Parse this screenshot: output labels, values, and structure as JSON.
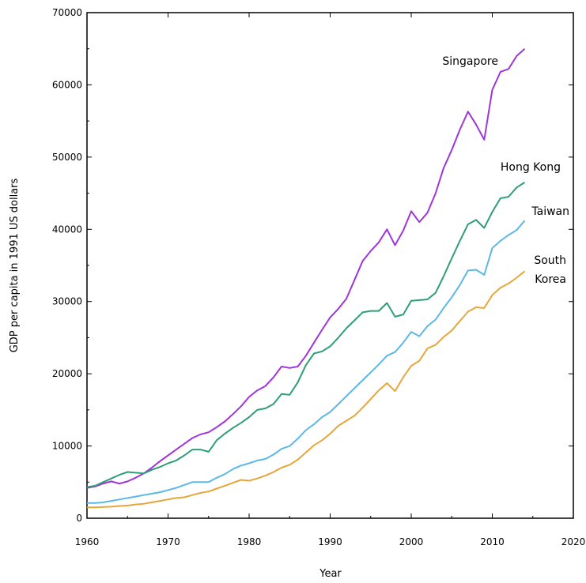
{
  "chart_data": {
    "type": "line",
    "title": "",
    "xlabel": "Year",
    "ylabel": "GDP per capita in 1991 US dollars",
    "xlim": [
      1960,
      2020
    ],
    "ylim": [
      0,
      70000
    ],
    "xticks": [
      "1960",
      "1970",
      "1980",
      "1990",
      "2000",
      "2010",
      "2020"
    ],
    "yticks": [
      "0",
      "10000",
      "20000",
      "30000",
      "40000",
      "50000",
      "60000",
      "70000"
    ],
    "grid": false,
    "legend": "inline labels at line ends",
    "series": [
      {
        "name": "Singapore",
        "label_lines": [
          "Singapore"
        ],
        "color": "#a035d8",
        "x": [
          1960,
          1961,
          1962,
          1963,
          1964,
          1965,
          1966,
          1967,
          1968,
          1969,
          1970,
          1971,
          1972,
          1973,
          1974,
          1975,
          1976,
          1977,
          1978,
          1979,
          1980,
          1981,
          1982,
          1983,
          1984,
          1985,
          1986,
          1987,
          1988,
          1989,
          1990,
          1991,
          1992,
          1993,
          1994,
          1995,
          1996,
          1997,
          1998,
          1999,
          2000,
          2001,
          2002,
          2003,
          2004,
          2005,
          2006,
          2007,
          2008,
          2009,
          2010,
          2011,
          2012,
          2013,
          2014
        ],
        "y": [
          4200,
          4400,
          4800,
          5100,
          4800,
          5100,
          5600,
          6200,
          7000,
          7900,
          8700,
          9500,
          10300,
          11100,
          11600,
          11900,
          12600,
          13400,
          14400,
          15500,
          16800,
          17700,
          18300,
          19500,
          21000,
          20800,
          21000,
          22500,
          24300,
          26100,
          27800,
          29000,
          30400,
          33000,
          35600,
          37000,
          38200,
          40000,
          37800,
          39800,
          42500,
          41000,
          42300,
          45000,
          48500,
          51000,
          53800,
          56300,
          54500,
          52400,
          59300,
          61800,
          62200,
          64000,
          65000
        ]
      },
      {
        "name": "Hong Kong",
        "label_lines": [
          "Hong Kong"
        ],
        "color": "#2e9e76",
        "x": [
          1960,
          1961,
          1962,
          1963,
          1964,
          1965,
          1966,
          1967,
          1968,
          1969,
          1970,
          1971,
          1972,
          1973,
          1974,
          1975,
          1976,
          1977,
          1978,
          1979,
          1980,
          1981,
          1982,
          1983,
          1984,
          1985,
          1986,
          1987,
          1988,
          1989,
          1990,
          1991,
          1992,
          1993,
          1994,
          1995,
          1996,
          1997,
          1998,
          1999,
          2000,
          2001,
          2002,
          2003,
          2004,
          2005,
          2006,
          2007,
          2008,
          2009,
          2010,
          2011,
          2012,
          2013,
          2014
        ],
        "y": [
          4300,
          4500,
          5000,
          5500,
          6000,
          6400,
          6300,
          6200,
          6700,
          7100,
          7600,
          8000,
          8700,
          9500,
          9500,
          9200,
          10800,
          11700,
          12500,
          13200,
          14000,
          15000,
          15200,
          15800,
          17200,
          17100,
          18800,
          21200,
          22800,
          23100,
          23800,
          25000,
          26300,
          27400,
          28500,
          28700,
          28700,
          29800,
          27900,
          28200,
          30100,
          30200,
          30300,
          31200,
          33500,
          36000,
          38400,
          40700,
          41300,
          40200,
          42400,
          44300,
          44500,
          45800,
          46500
        ]
      },
      {
        "name": "Taiwan",
        "label_lines": [
          "Taiwan"
        ],
        "color": "#5cb8e6",
        "x": [
          1960,
          1961,
          1962,
          1963,
          1964,
          1965,
          1966,
          1967,
          1968,
          1969,
          1970,
          1971,
          1972,
          1973,
          1974,
          1975,
          1976,
          1977,
          1978,
          1979,
          1980,
          1981,
          1982,
          1983,
          1984,
          1985,
          1986,
          1987,
          1988,
          1989,
          1990,
          1991,
          1992,
          1993,
          1994,
          1995,
          1996,
          1997,
          1998,
          1999,
          2000,
          2001,
          2002,
          2003,
          2004,
          2005,
          2006,
          2007,
          2008,
          2009,
          2010,
          2011,
          2012,
          2013,
          2014
        ],
        "y": [
          2100,
          2100,
          2200,
          2400,
          2600,
          2800,
          3000,
          3200,
          3400,
          3600,
          3900,
          4200,
          4600,
          5000,
          5000,
          5000,
          5600,
          6100,
          6800,
          7300,
          7600,
          8000,
          8200,
          8800,
          9600,
          10000,
          11000,
          12200,
          13000,
          14000,
          14700,
          15800,
          16900,
          18000,
          19100,
          20200,
          21300,
          22500,
          23000,
          24300,
          25800,
          25200,
          26600,
          27500,
          29100,
          30600,
          32300,
          34300,
          34400,
          33700,
          37400,
          38400,
          39200,
          39900,
          41200
        ]
      },
      {
        "name": "South Korea",
        "label_lines": [
          "South",
          "Korea"
        ],
        "color": "#e6a63c",
        "x": [
          1960,
          1961,
          1962,
          1963,
          1964,
          1965,
          1966,
          1967,
          1968,
          1969,
          1970,
          1971,
          1972,
          1973,
          1974,
          1975,
          1976,
          1977,
          1978,
          1979,
          1980,
          1981,
          1982,
          1983,
          1984,
          1985,
          1986,
          1987,
          1988,
          1989,
          1990,
          1991,
          1992,
          1993,
          1994,
          1995,
          1996,
          1997,
          1998,
          1999,
          2000,
          2001,
          2002,
          2003,
          2004,
          2005,
          2006,
          2007,
          2008,
          2009,
          2010,
          2011,
          2012,
          2013,
          2014
        ],
        "y": [
          1500,
          1500,
          1550,
          1600,
          1700,
          1750,
          1900,
          2000,
          2200,
          2400,
          2600,
          2800,
          2900,
          3200,
          3500,
          3700,
          4100,
          4500,
          4900,
          5300,
          5200,
          5500,
          5900,
          6400,
          7000,
          7400,
          8100,
          9100,
          10100,
          10800,
          11700,
          12800,
          13500,
          14200,
          15300,
          16500,
          17700,
          18700,
          17600,
          19500,
          21100,
          21800,
          23500,
          24000,
          25100,
          26000,
          27300,
          28600,
          29200,
          29100,
          30900,
          31900,
          32500,
          33300,
          34200
        ]
      }
    ]
  }
}
